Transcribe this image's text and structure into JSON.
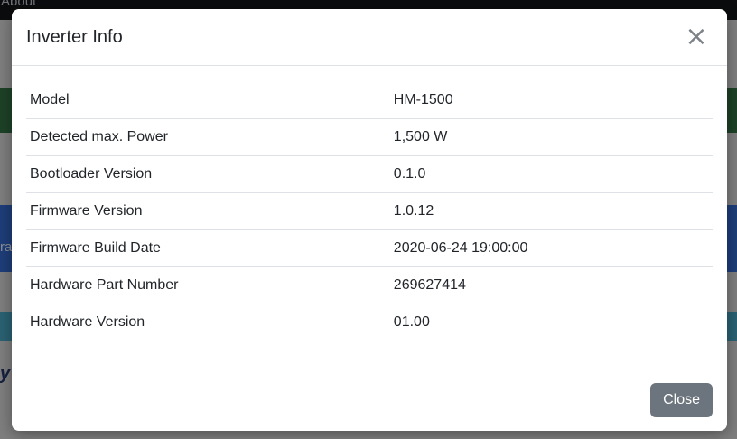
{
  "background_page": {
    "nav_item_label": "About",
    "text_fragments": {
      "blue_panel": "ra",
      "bottom_heading": "y"
    }
  },
  "modal": {
    "title": "Inverter Info",
    "close_icon_glyph": "×",
    "rows": [
      {
        "label": "Model",
        "value": "HM-1500"
      },
      {
        "label": "Detected max. Power",
        "value": "1,500 W"
      },
      {
        "label": "Bootloader Version",
        "value": "0.1.0"
      },
      {
        "label": "Firmware Version",
        "value": "1.0.12"
      },
      {
        "label": "Firmware Build Date",
        "value": "2020-06-24 19:00:00"
      },
      {
        "label": "Hardware Part Number",
        "value": "269627414"
      },
      {
        "label": "Hardware Version",
        "value": "01.00"
      }
    ],
    "footer": {
      "close_label": "Close"
    }
  },
  "colors": {
    "backdrop": "#7e7e7e",
    "navbar_bg": "#0b0c0d",
    "band_green": "#1d4227",
    "band_blue": "#1e3d79",
    "band_teal": "#2a6172",
    "modal_bg": "#ffffff",
    "text_primary": "#212529",
    "border": "#dee2e6",
    "button_secondary_bg": "#6c757d",
    "button_text": "#ffffff",
    "close_icon": "#7c8288"
  }
}
